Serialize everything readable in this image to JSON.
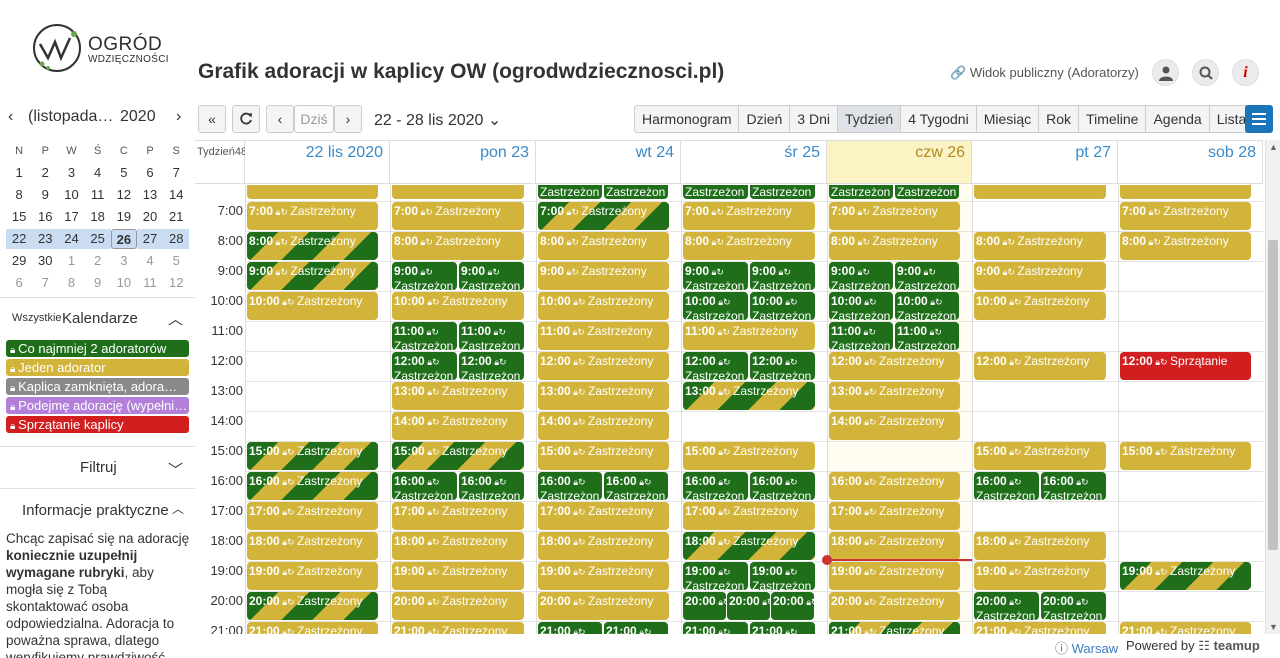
{
  "header": {
    "logo_line1": "OGRÓD",
    "logo_line2": "WDZIĘCZNOŚCI",
    "title": "Grafik adoracji w kaplicy OW (ogrodwdziecznosci.pl)",
    "public_link": "Widok publiczny (Adoratorzy)"
  },
  "mini_calendar": {
    "month": "(listopada…",
    "year": "2020",
    "weekdays": [
      "N",
      "P",
      "W",
      "Ś",
      "C",
      "P",
      "S"
    ],
    "weeks": [
      [
        "1",
        "2",
        "3",
        "4",
        "5",
        "6",
        "7"
      ],
      [
        "8",
        "9",
        "10",
        "11",
        "12",
        "13",
        "14"
      ],
      [
        "15",
        "16",
        "17",
        "18",
        "19",
        "20",
        "21"
      ],
      [
        "22",
        "23",
        "24",
        "25",
        "26",
        "27",
        "28"
      ],
      [
        "29",
        "30",
        "1",
        "2",
        "3",
        "4",
        "5"
      ],
      [
        "6",
        "7",
        "8",
        "9",
        "10",
        "11",
        "12"
      ]
    ]
  },
  "sidebar": {
    "all_label": "Wszystkie",
    "calendars_title": "Kalendarze",
    "calendars": [
      {
        "label": "Co najmniej 2 adoratorów",
        "color": "#1f6f1a"
      },
      {
        "label": "Jeden adorator",
        "color": "#d3b43a"
      },
      {
        "label": "Kaplica zamknięta, adora…",
        "color": "#8a8a8a"
      },
      {
        "label": "Podejmę adorację (wypełni…",
        "color": "#b27fd9"
      },
      {
        "label": "Sprzątanie kaplicy",
        "color": "#d11f1f"
      }
    ],
    "filter_title": "Filtruj",
    "info_title": "Informacje praktyczne",
    "info_p1": "Chcąc zapisać się na adorację ",
    "info_bold": "koniecznie uzupełnij wymagane rubryki",
    "info_p2": ", aby mogła się z Tobą skontaktować osoba odpowiedzialna. Adoracja to poważna sprawa, dlatego weryfikujemy prawdziwość"
  },
  "toolbar": {
    "today": "Dziś",
    "range": "22 - 28 lis 2020",
    "views": [
      "Harmonogram",
      "Dzień",
      "3 Dni",
      "Tydzień",
      "4 Tygodni",
      "Miesiąc",
      "Rok",
      "Timeline",
      "Agenda",
      "Lista"
    ],
    "active_view": "Tydzień"
  },
  "week": {
    "label": "Tydzień48",
    "days": [
      "22 lis 2020",
      "pon 23",
      "wt 24",
      "śr 25",
      "czw 26",
      "pt 27",
      "sob 28"
    ],
    "today_index": 4,
    "hours": [
      "7:00",
      "8:00",
      "9:00",
      "10:00",
      "11:00",
      "12:00",
      "13:00",
      "14:00",
      "15:00",
      "16:00",
      "17:00",
      "18:00",
      "19:00",
      "20:00",
      "21:00"
    ]
  },
  "event_text": "Zastrzeżony",
  "events": [
    {
      "d": 0,
      "h": 6,
      "t": "y",
      "time": "",
      "text": "",
      "half": "full"
    },
    {
      "d": 1,
      "h": 6,
      "t": "y",
      "time": "",
      "text": "",
      "half": "full"
    },
    {
      "d": 2,
      "h": 6,
      "t": "g",
      "time": "",
      "text": "Zastrzeżon",
      "half": "L"
    },
    {
      "d": 2,
      "h": 6,
      "t": "g",
      "time": "",
      "text": "Zastrzeżon",
      "half": "R"
    },
    {
      "d": 3,
      "h": 6,
      "t": "g",
      "time": "",
      "text": "Zastrzeżon",
      "half": "L"
    },
    {
      "d": 3,
      "h": 6,
      "t": "g",
      "time": "",
      "text": "Zastrzeżon",
      "half": "R"
    },
    {
      "d": 4,
      "h": 6,
      "t": "g",
      "time": "",
      "text": "Zastrzeżon",
      "half": "L"
    },
    {
      "d": 4,
      "h": 6,
      "t": "g",
      "time": "",
      "text": "Zastrzeżon",
      "half": "R"
    },
    {
      "d": 5,
      "h": 6,
      "t": "y",
      "time": "",
      "text": "",
      "half": "full"
    },
    {
      "d": 6,
      "h": 6,
      "t": "y",
      "time": "",
      "text": "",
      "half": "full"
    },
    {
      "d": 0,
      "h": 7,
      "t": "y",
      "time": "7:00",
      "text": "Zastrzeżony",
      "half": "full"
    },
    {
      "d": 1,
      "h": 7,
      "t": "y",
      "time": "7:00",
      "text": "Zastrzeżony",
      "half": "full"
    },
    {
      "d": 2,
      "h": 7,
      "t": "s",
      "time": "7:00",
      "text": "Zastrzeżony",
      "half": "full"
    },
    {
      "d": 3,
      "h": 7,
      "t": "y",
      "time": "7:00",
      "text": "Zastrzeżony",
      "half": "full"
    },
    {
      "d": 4,
      "h": 7,
      "t": "y",
      "time": "7:00",
      "text": "Zastrzeżony",
      "half": "full"
    },
    {
      "d": 6,
      "h": 7,
      "t": "y",
      "time": "7:00",
      "text": "Zastrzeżony",
      "half": "full"
    },
    {
      "d": 0,
      "h": 8,
      "t": "s",
      "time": "8:00",
      "text": "Zastrzeżony",
      "half": "full"
    },
    {
      "d": 1,
      "h": 8,
      "t": "y",
      "time": "8:00",
      "text": "Zastrzeżony",
      "half": "full"
    },
    {
      "d": 2,
      "h": 8,
      "t": "y",
      "time": "8:00",
      "text": "Zastrzeżony",
      "half": "full"
    },
    {
      "d": 3,
      "h": 8,
      "t": "y",
      "time": "8:00",
      "text": "Zastrzeżony",
      "half": "full"
    },
    {
      "d": 4,
      "h": 8,
      "t": "y",
      "time": "8:00",
      "text": "Zastrzeżony",
      "half": "full"
    },
    {
      "d": 5,
      "h": 8,
      "t": "y",
      "time": "8:00",
      "text": "Zastrzeżony",
      "half": "full"
    },
    {
      "d": 6,
      "h": 8,
      "t": "y",
      "time": "8:00",
      "text": "Zastrzeżony",
      "half": "full"
    },
    {
      "d": 0,
      "h": 9,
      "t": "s",
      "time": "9:00",
      "text": "Zastrzeżony",
      "half": "full"
    },
    {
      "d": 1,
      "h": 9,
      "t": "g",
      "time": "9:00",
      "text": "Zastrzeżon",
      "half": "L"
    },
    {
      "d": 1,
      "h": 9,
      "t": "g",
      "time": "9:00",
      "text": "Zastrzeżon",
      "half": "R"
    },
    {
      "d": 2,
      "h": 9,
      "t": "y",
      "time": "9:00",
      "text": "Zastrzeżony",
      "half": "full"
    },
    {
      "d": 3,
      "h": 9,
      "t": "g",
      "time": "9:00",
      "text": "Zastrzeżon",
      "half": "L"
    },
    {
      "d": 3,
      "h": 9,
      "t": "g",
      "time": "9:00",
      "text": "Zastrzeżon",
      "half": "R"
    },
    {
      "d": 4,
      "h": 9,
      "t": "g",
      "time": "9:00",
      "text": "Zastrzeżon",
      "half": "L"
    },
    {
      "d": 4,
      "h": 9,
      "t": "g",
      "time": "9:00",
      "text": "Zastrzeżon",
      "half": "R"
    },
    {
      "d": 5,
      "h": 9,
      "t": "y",
      "time": "9:00",
      "text": "Zastrzeżony",
      "half": "full"
    },
    {
      "d": 0,
      "h": 10,
      "t": "y",
      "time": "10:00",
      "text": "Zastrzeżony",
      "half": "full"
    },
    {
      "d": 1,
      "h": 10,
      "t": "y",
      "time": "10:00",
      "text": "Zastrzeżony",
      "half": "full"
    },
    {
      "d": 2,
      "h": 10,
      "t": "y",
      "time": "10:00",
      "text": "Zastrzeżony",
      "half": "full"
    },
    {
      "d": 3,
      "h": 10,
      "t": "g",
      "time": "10:00",
      "text": "Zastrzeżon",
      "half": "L"
    },
    {
      "d": 3,
      "h": 10,
      "t": "g",
      "time": "10:00",
      "text": "Zastrzeżon",
      "half": "R"
    },
    {
      "d": 4,
      "h": 10,
      "t": "g",
      "time": "10:00",
      "text": "Zastrzeżon",
      "half": "L"
    },
    {
      "d": 4,
      "h": 10,
      "t": "g",
      "time": "10:00",
      "text": "Zastrzeżon",
      "half": "R"
    },
    {
      "d": 5,
      "h": 10,
      "t": "y",
      "time": "10:00",
      "text": "Zastrzeżony",
      "half": "full"
    },
    {
      "d": 1,
      "h": 11,
      "t": "g",
      "time": "11:00",
      "text": "Zastrzeżon",
      "half": "L"
    },
    {
      "d": 1,
      "h": 11,
      "t": "g",
      "time": "11:00",
      "text": "Zastrzeżon",
      "half": "R"
    },
    {
      "d": 2,
      "h": 11,
      "t": "y",
      "time": "11:00",
      "text": "Zastrzeżony",
      "half": "full"
    },
    {
      "d": 3,
      "h": 11,
      "t": "y",
      "time": "11:00",
      "text": "Zastrzeżony",
      "half": "full"
    },
    {
      "d": 4,
      "h": 11,
      "t": "g",
      "time": "11:00",
      "text": "Zastrzeżon",
      "half": "L"
    },
    {
      "d": 4,
      "h": 11,
      "t": "g",
      "time": "11:00",
      "text": "Zastrzeżon",
      "half": "R"
    },
    {
      "d": 1,
      "h": 12,
      "t": "g",
      "time": "12:00",
      "text": "Zastrzeżon",
      "half": "L"
    },
    {
      "d": 1,
      "h": 12,
      "t": "g",
      "time": "12:00",
      "text": "Zastrzeżon",
      "half": "R"
    },
    {
      "d": 2,
      "h": 12,
      "t": "y",
      "time": "12:00",
      "text": "Zastrzeżony",
      "half": "full"
    },
    {
      "d": 3,
      "h": 12,
      "t": "g",
      "time": "12:00",
      "text": "Zastrzeżon",
      "half": "L"
    },
    {
      "d": 3,
      "h": 12,
      "t": "g",
      "time": "12:00",
      "text": "Zastrzeżon",
      "half": "R"
    },
    {
      "d": 4,
      "h": 12,
      "t": "y",
      "time": "12:00",
      "text": "Zastrzeżony",
      "half": "full"
    },
    {
      "d": 5,
      "h": 12,
      "t": "y",
      "time": "12:00",
      "text": "Zastrzeżony",
      "half": "full"
    },
    {
      "d": 6,
      "h": 12,
      "t": "r",
      "time": "12:00",
      "text": "Sprzątanie",
      "half": "full"
    },
    {
      "d": 1,
      "h": 13,
      "t": "y",
      "time": "13:00",
      "text": "Zastrzeżony",
      "half": "full"
    },
    {
      "d": 2,
      "h": 13,
      "t": "y",
      "time": "13:00",
      "text": "Zastrzeżony",
      "half": "full"
    },
    {
      "d": 3,
      "h": 13,
      "t": "s",
      "time": "13:00",
      "text": "Zastrzeżony",
      "half": "full"
    },
    {
      "d": 4,
      "h": 13,
      "t": "y",
      "time": "13:00",
      "text": "Zastrzeżony",
      "half": "full"
    },
    {
      "d": 1,
      "h": 14,
      "t": "y",
      "time": "14:00",
      "text": "Zastrzeżony",
      "half": "full"
    },
    {
      "d": 2,
      "h": 14,
      "t": "y",
      "time": "14:00",
      "text": "Zastrzeżony",
      "half": "full"
    },
    {
      "d": 4,
      "h": 14,
      "t": "y",
      "time": "14:00",
      "text": "Zastrzeżony",
      "half": "full"
    },
    {
      "d": 0,
      "h": 15,
      "t": "s",
      "time": "15:00",
      "text": "Zastrzeżony",
      "half": "full"
    },
    {
      "d": 1,
      "h": 15,
      "t": "s",
      "time": "15:00",
      "text": "Zastrzeżony",
      "half": "full"
    },
    {
      "d": 2,
      "h": 15,
      "t": "y",
      "time": "15:00",
      "text": "Zastrzeżony",
      "half": "full"
    },
    {
      "d": 3,
      "h": 15,
      "t": "y",
      "time": "15:00",
      "text": "Zastrzeżony",
      "half": "full"
    },
    {
      "d": 5,
      "h": 15,
      "t": "y",
      "time": "15:00",
      "text": "Zastrzeżony",
      "half": "full"
    },
    {
      "d": 6,
      "h": 15,
      "t": "y",
      "time": "15:00",
      "text": "Zastrzeżony",
      "half": "full"
    },
    {
      "d": 0,
      "h": 16,
      "t": "s",
      "time": "16:00",
      "text": "Zastrzeżony",
      "half": "full"
    },
    {
      "d": 1,
      "h": 16,
      "t": "g",
      "time": "16:00",
      "text": "Zastrzeżon",
      "half": "L"
    },
    {
      "d": 1,
      "h": 16,
      "t": "g",
      "time": "16:00",
      "text": "Zastrzeżon",
      "half": "R"
    },
    {
      "d": 2,
      "h": 16,
      "t": "g",
      "time": "16:00",
      "text": "Zastrzeżon",
      "half": "L"
    },
    {
      "d": 2,
      "h": 16,
      "t": "g",
      "time": "16:00",
      "text": "Zastrzeżon",
      "half": "R"
    },
    {
      "d": 3,
      "h": 16,
      "t": "g",
      "time": "16:00",
      "text": "Zastrzeżon",
      "half": "L"
    },
    {
      "d": 3,
      "h": 16,
      "t": "g",
      "time": "16:00",
      "text": "Zastrzeżon",
      "half": "R"
    },
    {
      "d": 4,
      "h": 16,
      "t": "y",
      "time": "16:00",
      "text": "Zastrzeżony",
      "half": "full"
    },
    {
      "d": 5,
      "h": 16,
      "t": "g",
      "time": "16:00",
      "text": "Zastrzeżon",
      "half": "L"
    },
    {
      "d": 5,
      "h": 16,
      "t": "g",
      "time": "16:00",
      "text": "Zastrzeżon",
      "half": "R"
    },
    {
      "d": 0,
      "h": 17,
      "t": "y",
      "time": "17:00",
      "text": "Zastrzeżony",
      "half": "full"
    },
    {
      "d": 1,
      "h": 17,
      "t": "y",
      "time": "17:00",
      "text": "Zastrzeżony",
      "half": "full"
    },
    {
      "d": 2,
      "h": 17,
      "t": "y",
      "time": "17:00",
      "text": "Zastrzeżony",
      "half": "full"
    },
    {
      "d": 3,
      "h": 17,
      "t": "y",
      "time": "17:00",
      "text": "Zastrzeżony",
      "half": "full"
    },
    {
      "d": 4,
      "h": 17,
      "t": "y",
      "time": "17:00",
      "text": "Zastrzeżony",
      "half": "full"
    },
    {
      "d": 0,
      "h": 18,
      "t": "y",
      "time": "18:00",
      "text": "Zastrzeżony",
      "half": "full"
    },
    {
      "d": 1,
      "h": 18,
      "t": "y",
      "time": "18:00",
      "text": "Zastrzeżony",
      "half": "full"
    },
    {
      "d": 2,
      "h": 18,
      "t": "y",
      "time": "18:00",
      "text": "Zastrzeżony",
      "half": "full"
    },
    {
      "d": 3,
      "h": 18,
      "t": "s",
      "time": "18:00",
      "text": "Zastrzeżony",
      "half": "full"
    },
    {
      "d": 4,
      "h": 18,
      "t": "y",
      "time": "18:00",
      "text": "Zastrzeżony",
      "half": "full"
    },
    {
      "d": 5,
      "h": 18,
      "t": "y",
      "time": "18:00",
      "text": "Zastrzeżony",
      "half": "full"
    },
    {
      "d": 0,
      "h": 19,
      "t": "y",
      "time": "19:00",
      "text": "Zastrzeżony",
      "half": "full"
    },
    {
      "d": 1,
      "h": 19,
      "t": "y",
      "time": "19:00",
      "text": "Zastrzeżony",
      "half": "full"
    },
    {
      "d": 2,
      "h": 19,
      "t": "y",
      "time": "19:00",
      "text": "Zastrzeżony",
      "half": "full"
    },
    {
      "d": 3,
      "h": 19,
      "t": "g",
      "time": "19:00",
      "text": "Zastrzeżon",
      "half": "L"
    },
    {
      "d": 3,
      "h": 19,
      "t": "g",
      "time": "19:00",
      "text": "Zastrzeżon",
      "half": "R"
    },
    {
      "d": 4,
      "h": 19,
      "t": "y",
      "time": "19:00",
      "text": "Zastrzeżony",
      "half": "full"
    },
    {
      "d": 5,
      "h": 19,
      "t": "y",
      "time": "19:00",
      "text": "Zastrzeżony",
      "half": "full"
    },
    {
      "d": 6,
      "h": 19,
      "t": "s",
      "time": "19:00",
      "text": "Zastrzeżony",
      "half": "full"
    },
    {
      "d": 0,
      "h": 20,
      "t": "s",
      "time": "20:00",
      "text": "Zastrzeżony",
      "half": "full"
    },
    {
      "d": 1,
      "h": 20,
      "t": "y",
      "time": "20:00",
      "text": "Zastrzeżony",
      "half": "full"
    },
    {
      "d": 2,
      "h": 20,
      "t": "y",
      "time": "20:00",
      "text": "Zastrzeżony",
      "half": "full"
    },
    {
      "d": 3,
      "h": 20,
      "t": "g",
      "time": "20:00",
      "text": "",
      "half": "T1"
    },
    {
      "d": 3,
      "h": 20,
      "t": "g",
      "time": "20:00",
      "text": "",
      "half": "T2"
    },
    {
      "d": 3,
      "h": 20,
      "t": "g",
      "time": "20:00",
      "text": "",
      "half": "T3"
    },
    {
      "d": 4,
      "h": 20,
      "t": "y",
      "time": "20:00",
      "text": "Zastrzeżony",
      "half": "full"
    },
    {
      "d": 5,
      "h": 20,
      "t": "g",
      "time": "20:00",
      "text": "Zastrzeżon",
      "half": "L"
    },
    {
      "d": 5,
      "h": 20,
      "t": "g",
      "time": "20:00",
      "text": "Zastrzeżon",
      "half": "R"
    },
    {
      "d": 0,
      "h": 21,
      "t": "y",
      "time": "21:00",
      "text": "Zastrzeżony",
      "half": "full"
    },
    {
      "d": 1,
      "h": 21,
      "t": "y",
      "time": "21:00",
      "text": "Zastrzeżony",
      "half": "full"
    },
    {
      "d": 2,
      "h": 21,
      "t": "g",
      "time": "21:00",
      "text": "",
      "half": "L"
    },
    {
      "d": 2,
      "h": 21,
      "t": "g",
      "time": "21:00",
      "text": "",
      "half": "R"
    },
    {
      "d": 3,
      "h": 21,
      "t": "g",
      "time": "21:00",
      "text": "",
      "half": "L"
    },
    {
      "d": 3,
      "h": 21,
      "t": "g",
      "time": "21:00",
      "text": "",
      "half": "R"
    },
    {
      "d": 4,
      "h": 21,
      "t": "s",
      "time": "21:00",
      "text": "Zastrzeżony",
      "half": "full"
    },
    {
      "d": 5,
      "h": 21,
      "t": "y",
      "time": "21:00",
      "text": "Zastrzeżony",
      "half": "full"
    },
    {
      "d": 6,
      "h": 21,
      "t": "y",
      "time": "21:00",
      "text": "Zastrzeżony",
      "half": "full"
    }
  ],
  "footer": {
    "timezone": "Warsaw",
    "powered": "Powered by",
    "brand": "teamup"
  }
}
